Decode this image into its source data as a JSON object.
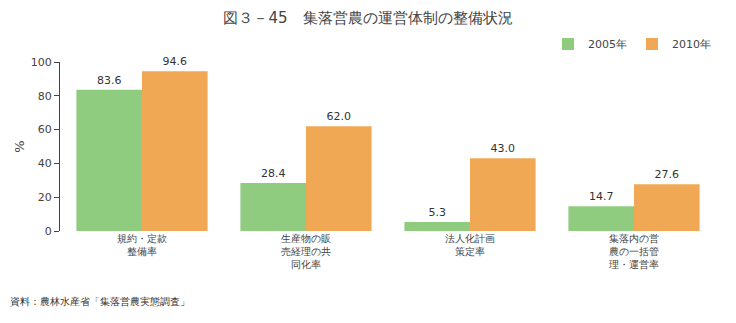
{
  "chart_data": {
    "type": "bar",
    "title": "図３－45　集落営農の運営体制の整備状況",
    "categories": [
      "規約・定款\n整備率",
      "生産物の販\n売経理の共\n同化率",
      "法人化計画\n策定率",
      "集落内の営\n農の一括管\n理・運営率"
    ],
    "series": [
      {
        "name": "2005年",
        "color": "#90cc80",
        "values": [
          83.6,
          28.4,
          5.3,
          14.7
        ],
        "value_labels": [
          "83.6",
          "28.4",
          "5.3",
          "14.7"
        ]
      },
      {
        "name": "2010年",
        "color": "#f0a855",
        "values": [
          94.6,
          62.0,
          43.0,
          27.6
        ],
        "value_labels": [
          "94.6",
          "62.0",
          "43.0",
          "27.6"
        ]
      }
    ],
    "ylabel": "%",
    "ylim": [
      0,
      100
    ],
    "yticks": [
      0,
      20,
      40,
      60,
      80,
      100
    ],
    "grid": false,
    "legend": "top",
    "data_labels": true,
    "annotations": [
      "資料：農林水産省「集落営農実態調査」"
    ]
  }
}
